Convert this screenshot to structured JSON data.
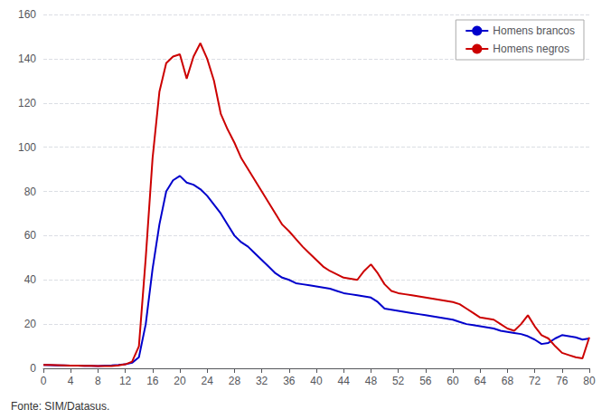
{
  "chart_data": {
    "type": "line",
    "annotation": "Fonte: SIM/Datasus.",
    "x": [
      0,
      1,
      2,
      3,
      4,
      5,
      6,
      7,
      8,
      9,
      10,
      11,
      12,
      13,
      14,
      15,
      16,
      17,
      18,
      19,
      20,
      21,
      22,
      23,
      24,
      25,
      26,
      27,
      28,
      29,
      30,
      31,
      32,
      33,
      34,
      35,
      36,
      37,
      38,
      39,
      40,
      41,
      42,
      43,
      44,
      45,
      46,
      47,
      48,
      49,
      50,
      51,
      52,
      53,
      54,
      55,
      56,
      57,
      58,
      59,
      60,
      61,
      62,
      63,
      64,
      65,
      66,
      67,
      68,
      69,
      70,
      71,
      72,
      73,
      74,
      75,
      76,
      77,
      78,
      79,
      80
    ],
    "series": [
      {
        "name": "Homens brancos",
        "color": "#0000cc",
        "values": [
          1.5,
          1.4,
          1.3,
          1.3,
          1.2,
          1.2,
          1.1,
          1.1,
          1.0,
          1.2,
          1.3,
          1.5,
          1.8,
          2.5,
          5.0,
          20.0,
          45.0,
          65.0,
          80.0,
          85.0,
          87.0,
          84.0,
          83.0,
          81.0,
          78.0,
          74.0,
          70.0,
          65.0,
          60.0,
          57.0,
          55.0,
          52.0,
          49.0,
          46.0,
          43.0,
          41.0,
          40.0,
          38.5,
          38.0,
          37.5,
          37.0,
          36.5,
          36.0,
          35.0,
          34.0,
          33.5,
          33.0,
          32.5,
          32.0,
          30.0,
          27.0,
          26.5,
          26.0,
          25.5,
          25.0,
          24.5,
          24.0,
          23.5,
          23.0,
          22.5,
          22.0,
          21.0,
          20.0,
          19.5,
          19.0,
          18.5,
          18.0,
          17.0,
          16.5,
          16.0,
          15.5,
          14.5,
          13.0,
          11.0,
          11.5,
          13.5,
          15.0,
          14.5,
          14.0,
          13.0,
          13.5
        ]
      },
      {
        "name": "Homens negros",
        "color": "#cc0000",
        "values": [
          1.5,
          1.5,
          1.4,
          1.3,
          1.2,
          1.2,
          1.1,
          1.1,
          1.0,
          1.0,
          1.0,
          1.3,
          1.8,
          3.0,
          10.0,
          50.0,
          95.0,
          125.0,
          138.0,
          141.0,
          142.0,
          131.0,
          141.0,
          147.0,
          140.0,
          130.0,
          115.0,
          108.0,
          102.0,
          95.0,
          90.0,
          85.0,
          80.0,
          75.0,
          70.0,
          65.0,
          62.0,
          58.5,
          55.0,
          52.0,
          49.0,
          46.0,
          44.0,
          42.5,
          41.0,
          40.5,
          40.0,
          44.0,
          47.0,
          43.0,
          38.0,
          35.0,
          34.0,
          33.5,
          33.0,
          32.5,
          32.0,
          31.5,
          31.0,
          30.5,
          30.0,
          29.0,
          27.0,
          25.0,
          23.0,
          22.5,
          22.0,
          20.0,
          18.0,
          17.0,
          20.0,
          24.0,
          19.0,
          15.0,
          13.5,
          10.0,
          7.0,
          6.0,
          5.0,
          4.5,
          14.0
        ]
      }
    ],
    "xlim": [
      0,
      80
    ],
    "ylim": [
      0,
      160
    ],
    "xticks": [
      0,
      4,
      8,
      12,
      16,
      20,
      24,
      28,
      32,
      36,
      40,
      44,
      48,
      52,
      56,
      60,
      64,
      68,
      72,
      76,
      80
    ],
    "yticks": [
      0,
      20,
      40,
      60,
      80,
      100,
      120,
      140,
      160
    ],
    "grid": true,
    "legend": "upper right"
  }
}
